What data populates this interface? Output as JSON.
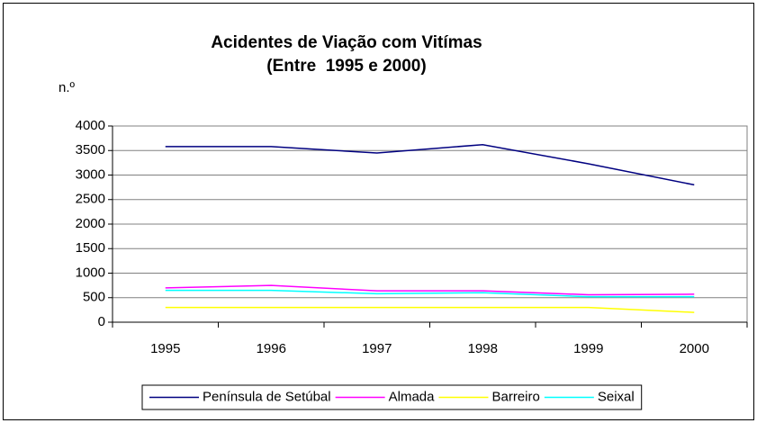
{
  "chart_data": {
    "type": "line",
    "title": "Acidentes de Viação com Vitímas",
    "subtitle": "(Entre  1995 e 2000)",
    "y_label": "n.º",
    "categories": [
      "1995",
      "1996",
      "1997",
      "1998",
      "1999",
      "2000"
    ],
    "series": [
      {
        "name": "Península de Setúbal",
        "color": "#000080",
        "values": [
          3580,
          3580,
          3450,
          3620,
          3230,
          2800
        ]
      },
      {
        "name": "Almada",
        "color": "#ff00ff",
        "values": [
          700,
          750,
          640,
          640,
          560,
          570
        ]
      },
      {
        "name": "Barreiro",
        "color": "#ffff00",
        "values": [
          300,
          300,
          300,
          300,
          300,
          200
        ]
      },
      {
        "name": "Seixal",
        "color": "#00ffff",
        "values": [
          650,
          650,
          580,
          600,
          520,
          520
        ]
      }
    ],
    "ylim": [
      0,
      4000
    ],
    "yticks": [
      0,
      500,
      1000,
      1500,
      2000,
      2500,
      3000,
      3500,
      4000
    ],
    "grid": true,
    "legend": "bottom"
  }
}
